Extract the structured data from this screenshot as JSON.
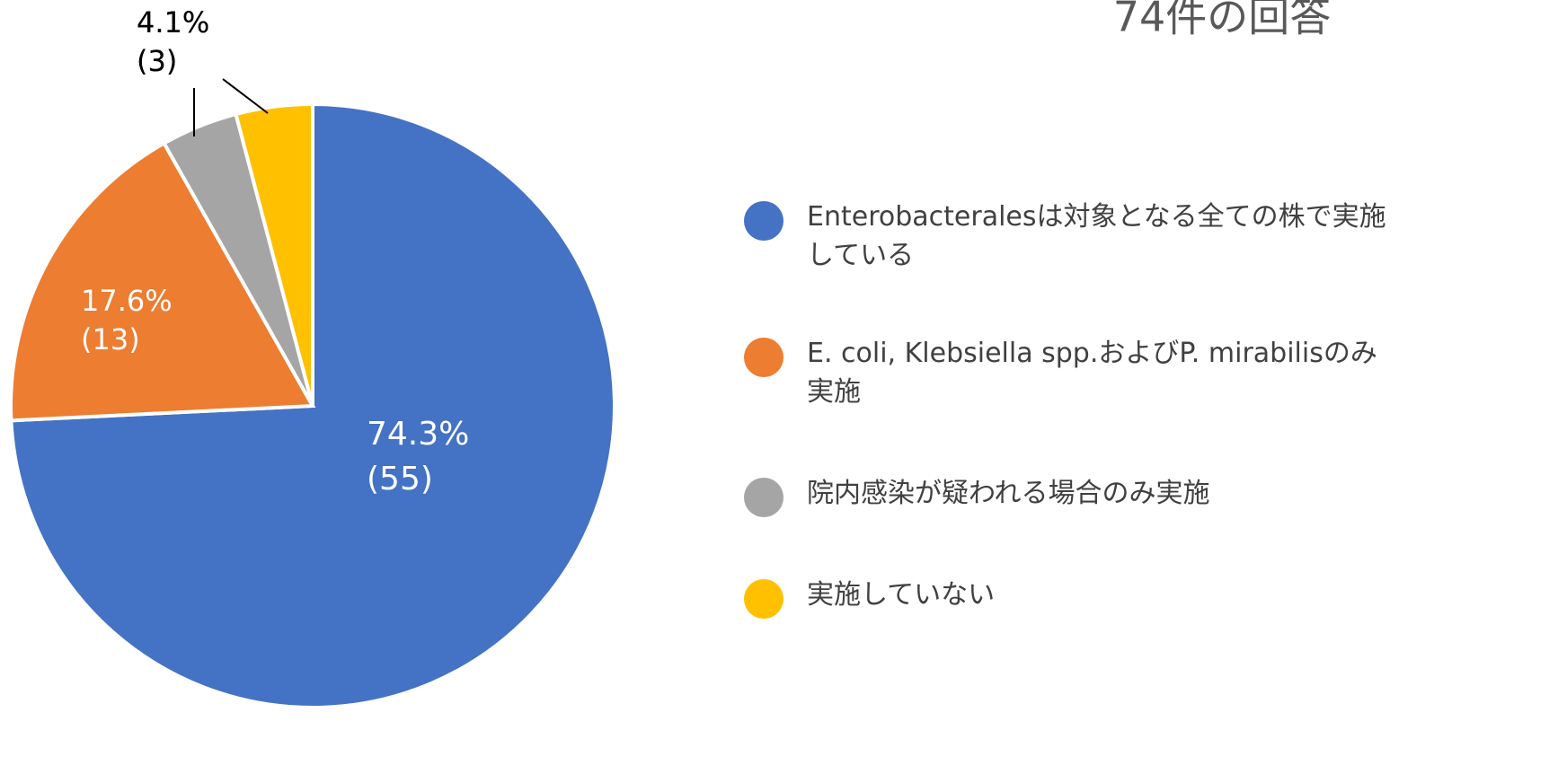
{
  "chart_data": {
    "type": "pie",
    "title": "74件の回答",
    "series": [
      {
        "name": "Enterobacteralesは対象となる全ての株で実施している",
        "color": "#4472c4"
      },
      {
        "name": "E. coli, Klebsiella spp.およびP. mirabilisのみ実施",
        "color": "#ed7d31"
      },
      {
        "name": "院内感染が疑われる場合のみ実施",
        "color": "#a5a5a5"
      },
      {
        "name": "実施していない",
        "color": "#ffc000"
      }
    ],
    "values": [
      74.3,
      17.6,
      4.1,
      4.1
    ],
    "value_labels": [
      "74.3%",
      "17.6%",
      "4.1%",
      "4.1%"
    ],
    "counts": [
      55,
      13,
      3,
      3
    ],
    "count_labels": [
      "(55)",
      "(13)",
      "(3)",
      "(3)"
    ],
    "legend": "right"
  }
}
